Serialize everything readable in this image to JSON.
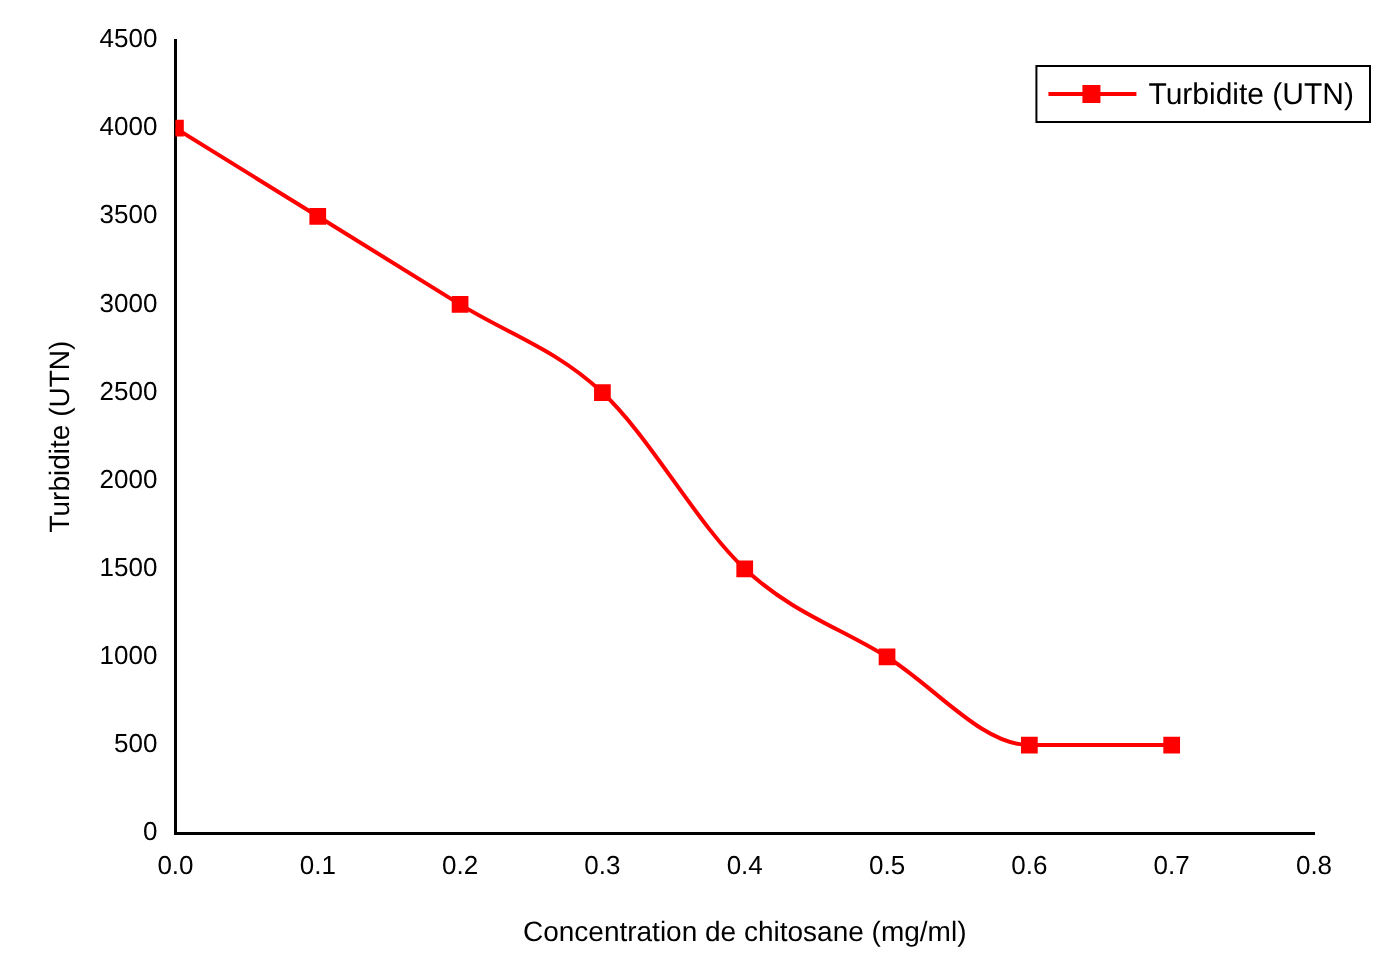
{
  "chart_data": {
    "type": "line",
    "xlabel": "Concentration de chitosane (mg/ml)",
    "ylabel": "Turbidite (UTN)",
    "x": [
      0,
      0.1,
      0.2,
      0.3,
      0.4,
      0.5,
      0.6,
      0.7
    ],
    "series": [
      {
        "name": "Turbidite (UTN)",
        "color": "#ff0000",
        "values": [
          4000,
          3500,
          3000,
          2500,
          1500,
          1000,
          500,
          500
        ]
      }
    ],
    "xlim": [
      0,
      0.8
    ],
    "xticks": [
      {
        "value": 0,
        "label": "0.0"
      },
      0.1,
      0.2,
      0.3,
      0.4,
      0.5,
      0.6,
      0.7,
      0.8
    ],
    "ylim": [
      0,
      4500
    ],
    "yticks": [
      0,
      500,
      1000,
      1500,
      2000,
      2500,
      3000,
      3500,
      4000,
      4500
    ],
    "grid": false,
    "legend": "top right",
    "marker": "square",
    "line_style": "solid"
  }
}
